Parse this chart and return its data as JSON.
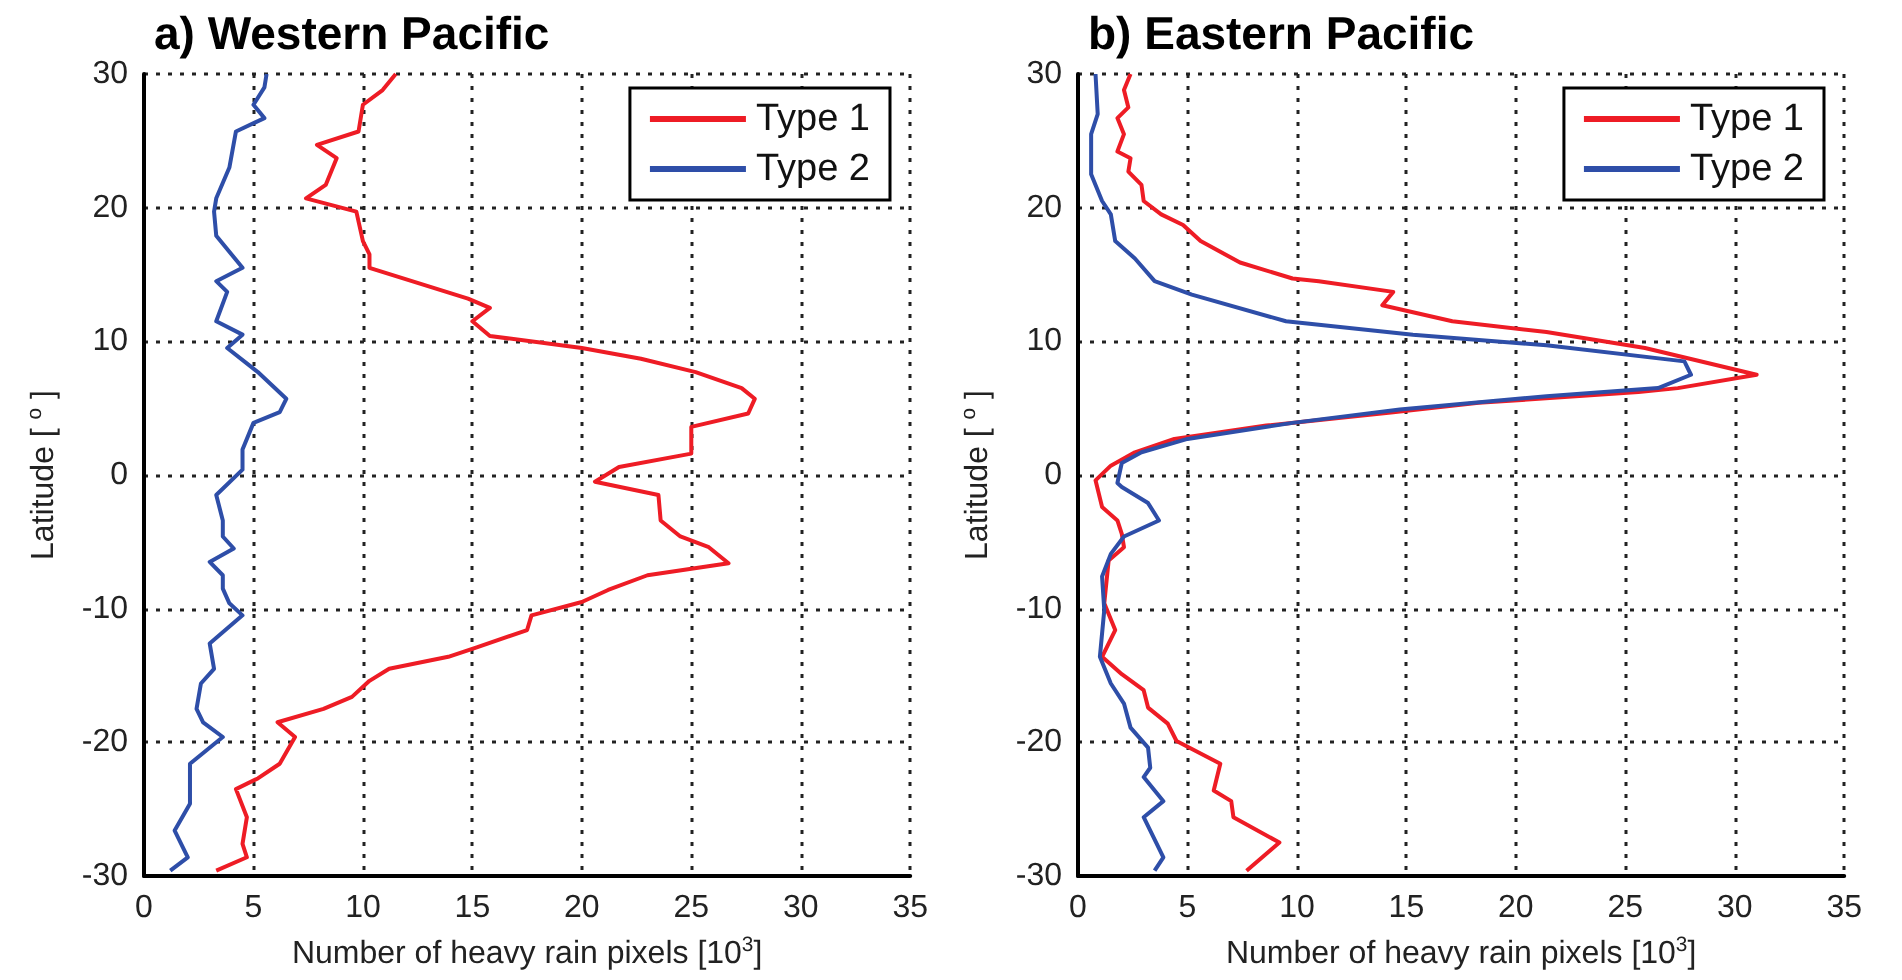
{
  "chart_data": [
    {
      "type": "line",
      "title": "a) Western Pacific",
      "xlabel": "Number of heavy rain pixels [10$^{3}$]",
      "ylabel": "Latitude [ $^{o}$ ]",
      "xlim": [
        0,
        35
      ],
      "xticks": [
        0,
        5,
        10,
        15,
        20,
        25,
        30,
        35
      ],
      "ylim": [
        -30,
        30
      ],
      "yticks": [
        -30,
        -20,
        -10,
        0,
        10,
        20,
        30
      ],
      "grid": true,
      "legend": "top right",
      "series": [
        {
          "name": "Type 1",
          "color": "#ee1c25",
          "x": [
            11.5,
            10.9,
            10,
            9.8,
            7.9,
            8.8,
            8.3,
            7.4,
            9.7,
            10,
            10.3,
            10.3,
            14.8,
            15.8,
            15,
            15.8,
            20,
            22.7,
            25.2,
            27.3,
            27.9,
            27.6,
            25,
            25,
            21.7,
            20.6,
            23.5,
            23.6,
            24.5,
            25.8,
            26.7,
            23,
            21.2,
            20,
            17.7,
            17.5,
            15.2,
            13.9,
            11.2,
            10.3,
            9.5,
            8.2,
            6.1,
            6.9,
            6.2,
            5.2,
            4.2,
            4.7,
            4.5,
            4.7,
            3.3
          ],
          "values": [
            30,
            28.8,
            27.7,
            25.7,
            24.7,
            23.7,
            21.7,
            20.7,
            19.7,
            17.5,
            16.5,
            15.5,
            13.2,
            12.5,
            11.5,
            10.4,
            9.5,
            8.7,
            7.7,
            6.5,
            5.7,
            4.6,
            3.6,
            1.6,
            0.6,
            -0.5,
            -1.5,
            -3.4,
            -4.6,
            -5.4,
            -6.6,
            -7.5,
            -8.6,
            -9.5,
            -10.5,
            -11.6,
            -12.9,
            -13.6,
            -14.5,
            -15.4,
            -16.6,
            -17.5,
            -18.5,
            -19.6,
            -21.6,
            -22.7,
            -23.5,
            -25.6,
            -27.6,
            -28.6,
            -29.6
          ]
        },
        {
          "name": "Type 2",
          "color": "#2e4ea8",
          "x": [
            5.6,
            5.5,
            5,
            5.5,
            4.2,
            3.9,
            3.3,
            3.2,
            3.3,
            4.5,
            3.3,
            3.8,
            3.3,
            4.5,
            3.8,
            5.2,
            6.5,
            6.2,
            5,
            4.5,
            4.5,
            3.3,
            3.6,
            3.6,
            4.1,
            3,
            3.6,
            3.6,
            3.9,
            4.5,
            3,
            3.2,
            2.6,
            2.4,
            2.7,
            3.6,
            2.1,
            2.1,
            1.4,
            2,
            1.2
          ],
          "values": [
            30,
            29,
            27.7,
            26.7,
            25.7,
            23,
            20.7,
            19.7,
            17.9,
            15.5,
            14.5,
            13.7,
            11.5,
            10.5,
            9.5,
            7.7,
            5.7,
            4.7,
            3.9,
            1.9,
            0.4,
            -1.5,
            -3.4,
            -4.6,
            -5.5,
            -6.5,
            -7.5,
            -8.5,
            -9.6,
            -10.5,
            -12.6,
            -14.5,
            -15.6,
            -17.5,
            -18.5,
            -19.6,
            -21.6,
            -24.6,
            -26.6,
            -28.6,
            -29.6
          ]
        }
      ]
    },
    {
      "type": "line",
      "title": "b) Eastern Pacific",
      "xlabel": "Number of heavy rain pixels [10$^{3}$]",
      "ylabel": "Latitude [ $^{o}$ ]",
      "xlim": [
        0,
        35
      ],
      "xticks": [
        0,
        5,
        10,
        15,
        20,
        25,
        30,
        35
      ],
      "ylim": [
        -30,
        30
      ],
      "yticks": [
        -30,
        -20,
        -10,
        0,
        10,
        20,
        30
      ],
      "grid": true,
      "legend": "top right",
      "series": [
        {
          "name": "Type 1",
          "color": "#ee1c25",
          "x": [
            2.4,
            2.1,
            2.3,
            1.8,
            2.1,
            1.8,
            2.4,
            2.3,
            2.9,
            3,
            3.8,
            4.8,
            5.6,
            7.4,
            9.8,
            11,
            14.4,
            13.9,
            17.1,
            21.4,
            25.9,
            31,
            27.4,
            25.6,
            18.3,
            14.4,
            8.6,
            4.4,
            2.6,
            1.5,
            0.8,
            1.1,
            1.8,
            2,
            2.1,
            1.4,
            1.2,
            1.7,
            1.1,
            2,
            3,
            3.2,
            4.1,
            4.5,
            6.5,
            6.2,
            7,
            7.1,
            9.2,
            7.7
          ],
          "values": [
            30,
            28.8,
            27.5,
            26.7,
            25.5,
            24.2,
            23.7,
            22.7,
            21.7,
            20.5,
            19.5,
            18.7,
            17.5,
            15.9,
            14.7,
            14.5,
            13.7,
            12.7,
            11.5,
            10.7,
            9.5,
            7.5,
            6.5,
            6.2,
            5.4,
            4.7,
            3.7,
            2.7,
            1.7,
            0.7,
            -0.4,
            -2.4,
            -3.4,
            -4.4,
            -5.4,
            -6.4,
            -9.6,
            -11.6,
            -13.6,
            -14.9,
            -16.1,
            -17.4,
            -18.6,
            -19.9,
            -21.6,
            -23.6,
            -24.4,
            -25.6,
            -27.5,
            -29.6
          ]
        },
        {
          "name": "Type 2",
          "color": "#2e4ea8",
          "x": [
            0.8,
            0.9,
            0.6,
            0.6,
            1.1,
            1.5,
            1.7,
            2.6,
            3.5,
            5.2,
            9.5,
            15.3,
            21.4,
            27.7,
            28,
            26.5,
            21.4,
            14.7,
            9.8,
            5,
            2.9,
            2,
            1.8,
            2,
            3.2,
            3.7,
            2.1,
            1.5,
            1.1,
            1.2,
            1,
            1.5,
            2.1,
            2.4,
            3.2,
            3.3,
            3,
            3.9,
            3,
            3.9,
            3.5
          ],
          "values": [
            30,
            27,
            25.5,
            22.5,
            20.5,
            19.5,
            17.5,
            16.2,
            14.5,
            13.5,
            11.5,
            10.5,
            9.7,
            8.5,
            7.5,
            6.5,
            5.9,
            4.9,
            3.9,
            2.7,
            1.7,
            0.9,
            -0.6,
            -0.9,
            -2.1,
            -3.4,
            -4.6,
            -5.9,
            -7.6,
            -10.1,
            -13.6,
            -15.6,
            -17.1,
            -18.9,
            -20.4,
            -21.9,
            -22.6,
            -24.4,
            -25.6,
            -28.6,
            -29.6
          ]
        }
      ]
    }
  ]
}
